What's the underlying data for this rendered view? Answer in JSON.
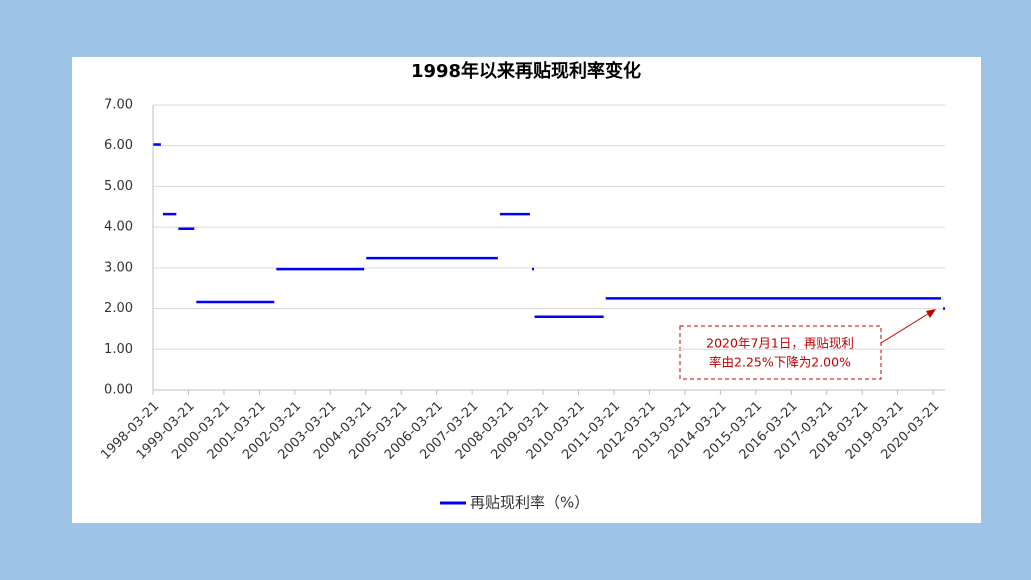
{
  "chart_data": {
    "type": "step",
    "title": "1998年以来再贴现利率变化",
    "series": [
      {
        "name": "再贴现利率（%）",
        "color": "#0000ff",
        "x": [
          "1998-03-25",
          "1998-07-01",
          "1998-12-07",
          "1999-06-10",
          "2001-09-11",
          "2004-03-25",
          "2008-01-01",
          "2008-11-27",
          "2008-12-23",
          "2010-12-26",
          "2020-07-01"
        ],
        "values": [
          6.03,
          4.32,
          3.96,
          2.16,
          2.97,
          3.24,
          4.32,
          2.97,
          1.8,
          2.25,
          2.0
        ]
      }
    ],
    "xlim": [
      "1998-03-21",
      "2020-07-21"
    ],
    "xticks": [
      "1998-03-21",
      "1999-03-21",
      "2000-03-21",
      "2001-03-21",
      "2002-03-21",
      "2003-03-21",
      "2004-03-21",
      "2005-03-21",
      "2006-03-21",
      "2007-03-21",
      "2008-03-21",
      "2009-03-21",
      "2010-03-21",
      "2011-03-21",
      "2012-03-21",
      "2013-03-21",
      "2014-03-21",
      "2015-03-21",
      "2016-03-21",
      "2017-03-21",
      "2018-03-21",
      "2019-03-21",
      "2020-03-21"
    ],
    "ylim": [
      0,
      7
    ],
    "yticks": [
      {
        "value": 0,
        "label": "0.00"
      },
      {
        "value": 1,
        "label": "1.00"
      },
      {
        "value": 2,
        "label": "2.00"
      },
      {
        "value": 3,
        "label": "3.00"
      },
      {
        "value": 4,
        "label": "4.00"
      },
      {
        "value": 5,
        "label": "5.00"
      },
      {
        "value": 6,
        "label": "6.00"
      },
      {
        "value": 7,
        "label": "7.00"
      }
    ],
    "grid": true,
    "annotation": [
      "2020年7月1日，再贴现利",
      "率由2.25%下降为2.00%"
    ]
  }
}
